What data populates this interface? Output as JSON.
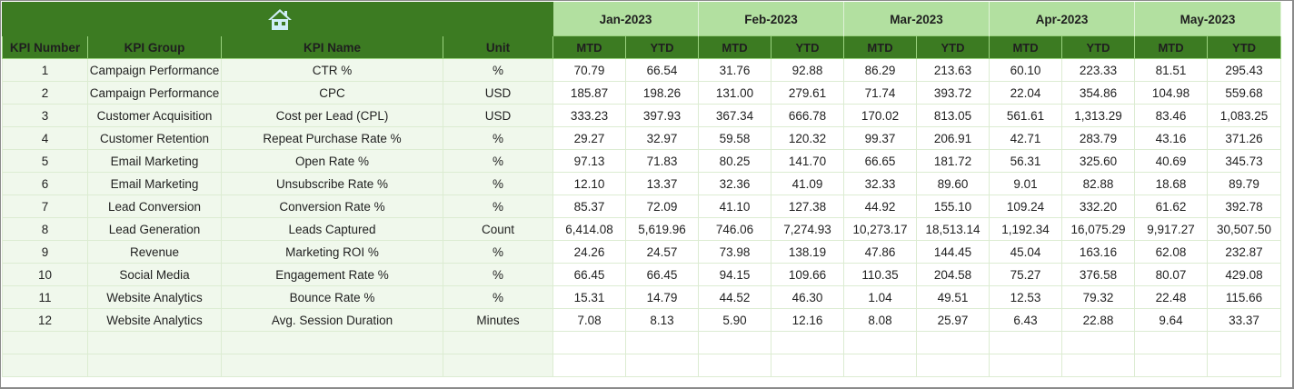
{
  "header": {
    "home_icon": "home-icon",
    "months": [
      "Jan-2023",
      "Feb-2023",
      "Mar-2023",
      "Apr-2023",
      "May-2023"
    ],
    "columns": {
      "kpi_number": "KPI Number",
      "kpi_group": "KPI Group",
      "kpi_name": "KPI Name",
      "unit": "Unit"
    },
    "period_labels": {
      "mtd": "MTD",
      "ytd": "YTD"
    }
  },
  "colors": {
    "header_dark_green": "#3c7b22",
    "month_light_green": "#b2e0a0",
    "left_cell_bg": "#f0f8ec",
    "gridline": "#dcecd2"
  },
  "rows": [
    {
      "num": "1",
      "group": "Campaign Performance",
      "name": "CTR %",
      "unit": "%",
      "values": [
        "70.79",
        "66.54",
        "31.76",
        "92.88",
        "86.29",
        "213.63",
        "60.10",
        "223.33",
        "81.51",
        "295.43"
      ]
    },
    {
      "num": "2",
      "group": "Campaign Performance",
      "name": "CPC",
      "unit": "USD",
      "values": [
        "185.87",
        "198.26",
        "131.00",
        "279.61",
        "71.74",
        "393.72",
        "22.04",
        "354.86",
        "104.98",
        "559.68"
      ]
    },
    {
      "num": "3",
      "group": "Customer Acquisition",
      "name": "Cost per Lead (CPL)",
      "unit": "USD",
      "values": [
        "333.23",
        "397.93",
        "367.34",
        "666.78",
        "170.02",
        "813.05",
        "561.61",
        "1,313.29",
        "83.46",
        "1,083.25"
      ]
    },
    {
      "num": "4",
      "group": "Customer Retention",
      "name": "Repeat Purchase Rate %",
      "unit": "%",
      "values": [
        "29.27",
        "32.97",
        "59.58",
        "120.32",
        "99.37",
        "206.91",
        "42.71",
        "283.79",
        "43.16",
        "371.26"
      ]
    },
    {
      "num": "5",
      "group": "Email Marketing",
      "name": "Open Rate %",
      "unit": "%",
      "values": [
        "97.13",
        "71.83",
        "80.25",
        "141.70",
        "66.65",
        "181.72",
        "56.31",
        "325.60",
        "40.69",
        "345.73"
      ]
    },
    {
      "num": "6",
      "group": "Email Marketing",
      "name": "Unsubscribe Rate %",
      "unit": "%",
      "values": [
        "12.10",
        "13.37",
        "32.36",
        "41.09",
        "32.33",
        "89.60",
        "9.01",
        "82.88",
        "18.68",
        "89.79"
      ]
    },
    {
      "num": "7",
      "group": "Lead Conversion",
      "name": "Conversion Rate %",
      "unit": "%",
      "values": [
        "85.37",
        "72.09",
        "41.10",
        "127.38",
        "44.92",
        "155.10",
        "109.24",
        "332.20",
        "61.62",
        "392.78"
      ]
    },
    {
      "num": "8",
      "group": "Lead Generation",
      "name": "Leads Captured",
      "unit": "Count",
      "values": [
        "6,414.08",
        "5,619.96",
        "746.06",
        "7,274.93",
        "10,273.17",
        "18,513.14",
        "1,192.34",
        "16,075.29",
        "9,917.27",
        "30,507.50"
      ]
    },
    {
      "num": "9",
      "group": "Revenue",
      "name": "Marketing ROI %",
      "unit": "%",
      "values": [
        "24.26",
        "24.57",
        "73.98",
        "138.19",
        "47.86",
        "144.45",
        "45.04",
        "163.16",
        "62.08",
        "232.87"
      ]
    },
    {
      "num": "10",
      "group": "Social Media",
      "name": "Engagement Rate %",
      "unit": "%",
      "values": [
        "66.45",
        "66.45",
        "94.15",
        "109.66",
        "110.35",
        "204.58",
        "75.27",
        "376.58",
        "80.07",
        "429.08"
      ]
    },
    {
      "num": "11",
      "group": "Website Analytics",
      "name": "Bounce Rate %",
      "unit": "%",
      "values": [
        "15.31",
        "14.79",
        "44.52",
        "46.30",
        "1.04",
        "49.51",
        "12.53",
        "79.32",
        "22.48",
        "115.66"
      ]
    },
    {
      "num": "12",
      "group": "Website Analytics",
      "name": "Avg. Session Duration",
      "unit": "Minutes",
      "values": [
        "7.08",
        "8.13",
        "5.90",
        "12.16",
        "8.08",
        "25.97",
        "6.43",
        "22.88",
        "9.64",
        "33.37"
      ]
    }
  ],
  "empty_rows": 2
}
